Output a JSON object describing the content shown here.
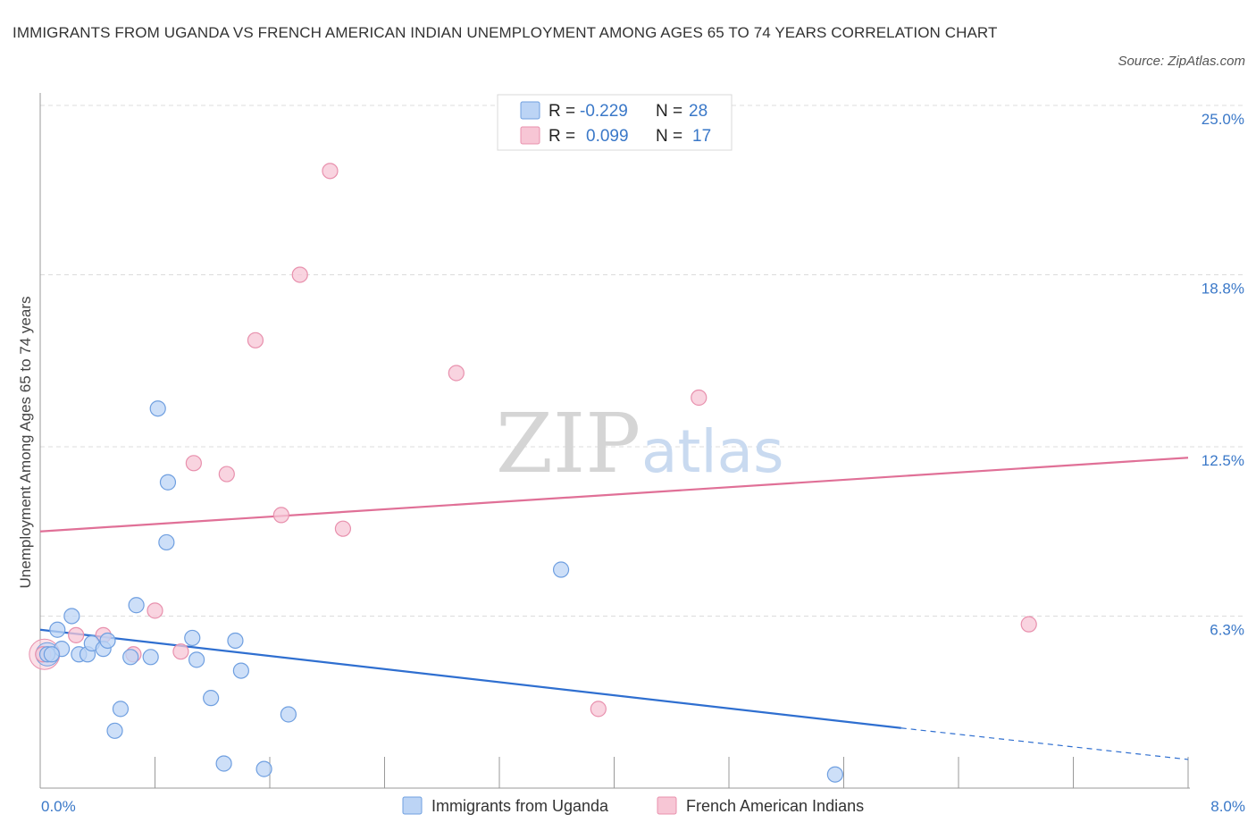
{
  "header": {
    "title": "IMMIGRANTS FROM UGANDA VS FRENCH AMERICAN INDIAN UNEMPLOYMENT AMONG AGES 65 TO 74 YEARS CORRELATION CHART",
    "source": "Source: ZipAtlas.com"
  },
  "legend": {
    "r_label": "R =",
    "n_label": "N =",
    "items": [
      {
        "r": "-0.229",
        "n": "28"
      },
      {
        "r": "0.099",
        "n": "17"
      }
    ]
  },
  "bottom_legend": [
    "Immigrants from Uganda",
    "French American Indians"
  ],
  "watermark": {
    "zip": "ZIP",
    "atlas": "atlas"
  },
  "colors": {
    "blue_fill": "#bcd4f5",
    "blue_stroke": "#6f9fe0",
    "blue_line": "#2f6fd0",
    "pink_fill": "#f7c6d5",
    "pink_stroke": "#e890ad",
    "pink_line": "#e07097",
    "grid": "#dcdcdc",
    "axis": "#999999"
  },
  "chart_data": {
    "type": "scatter",
    "title": "IMMIGRANTS FROM UGANDA VS FRENCH AMERICAN INDIAN UNEMPLOYMENT AMONG AGES 65 TO 74 YEARS CORRELATION CHART",
    "ylabel": "Unemployment Among Ages 65 to 74 years",
    "xlabel": "",
    "xlim": [
      0,
      8.0
    ],
    "ylim": [
      0,
      25.0
    ],
    "x_tick_labels": [
      "0.0%",
      "8.0%"
    ],
    "y_tick_values": [
      6.3,
      12.5,
      18.8,
      25.0
    ],
    "y_tick_labels": [
      "6.3%",
      "12.5%",
      "18.8%",
      "25.0%"
    ],
    "grid": "horizontal dashed",
    "legend_position": "top-center",
    "series": [
      {
        "name": "Immigrants from Uganda",
        "color": "#6f9fe0",
        "points": [
          [
            0.05,
            4.9
          ],
          [
            0.12,
            5.8
          ],
          [
            0.15,
            5.1
          ],
          [
            0.22,
            6.3
          ],
          [
            0.27,
            4.9
          ],
          [
            0.33,
            4.9
          ],
          [
            0.36,
            5.3
          ],
          [
            0.44,
            5.1
          ],
          [
            0.47,
            5.4
          ],
          [
            0.56,
            2.9
          ],
          [
            0.52,
            2.1
          ],
          [
            0.63,
            4.8
          ],
          [
            0.67,
            6.7
          ],
          [
            0.77,
            4.8
          ],
          [
            0.82,
            13.9
          ],
          [
            0.88,
            9.0
          ],
          [
            0.89,
            11.2
          ],
          [
            1.06,
            5.5
          ],
          [
            1.09,
            4.7
          ],
          [
            1.19,
            3.3
          ],
          [
            1.28,
            0.9
          ],
          [
            1.36,
            5.4
          ],
          [
            1.4,
            4.3
          ],
          [
            1.56,
            0.7
          ],
          [
            1.73,
            2.7
          ],
          [
            3.63,
            8.0
          ],
          [
            5.54,
            0.5
          ],
          [
            0.08,
            4.9
          ]
        ],
        "trend": {
          "x0": 0.0,
          "y0": 5.8,
          "x1": 6.0,
          "y1": 2.2,
          "dashed_to_x": 8.0,
          "dashed_to_y": 1.05
        }
      },
      {
        "name": "French American Indians",
        "color": "#e890ad",
        "points": [
          [
            0.02,
            4.9
          ],
          [
            0.25,
            5.6
          ],
          [
            0.44,
            5.6
          ],
          [
            0.65,
            4.9
          ],
          [
            0.8,
            6.5
          ],
          [
            0.98,
            5.0
          ],
          [
            1.07,
            11.9
          ],
          [
            1.3,
            11.5
          ],
          [
            1.5,
            16.4
          ],
          [
            1.68,
            10.0
          ],
          [
            1.81,
            18.8
          ],
          [
            2.02,
            22.6
          ],
          [
            2.11,
            9.5
          ],
          [
            2.9,
            15.2
          ],
          [
            3.89,
            2.9
          ],
          [
            4.59,
            14.3
          ],
          [
            6.89,
            6.0
          ]
        ],
        "trend": {
          "x0": 0.0,
          "y0": 9.4,
          "x1": 8.0,
          "y1": 12.1
        }
      }
    ]
  }
}
